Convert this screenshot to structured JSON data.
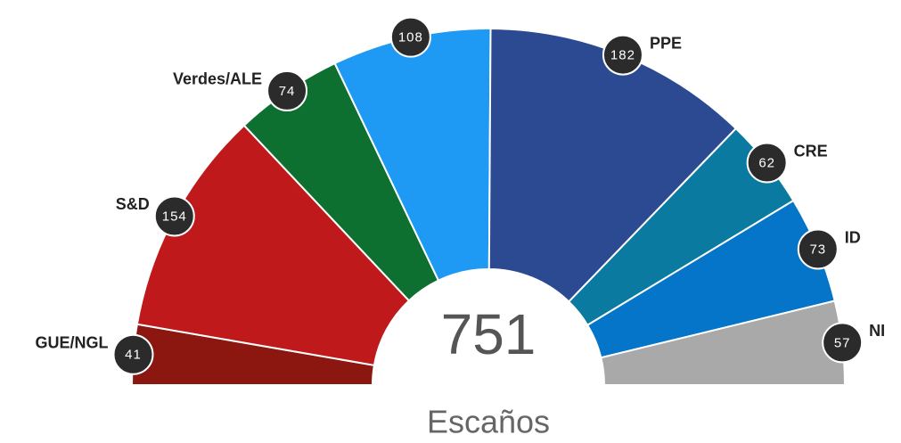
{
  "chart_data": {
    "type": "parliament",
    "categories": [
      "GUE/NGL",
      "S&D",
      "Verdes/ALE",
      null,
      "PPE",
      "CRE",
      "ID",
      "NI"
    ],
    "values": [
      41,
      154,
      74,
      108,
      182,
      62,
      73,
      57
    ],
    "colors": [
      "#8b1710",
      "#c0191b",
      "#0e7030",
      "#1e9af5",
      "#2c4a91",
      "#0b7aa0",
      "#0575c9",
      "#a9a9a9"
    ],
    "total": 751,
    "subtitle": "Escaños"
  }
}
